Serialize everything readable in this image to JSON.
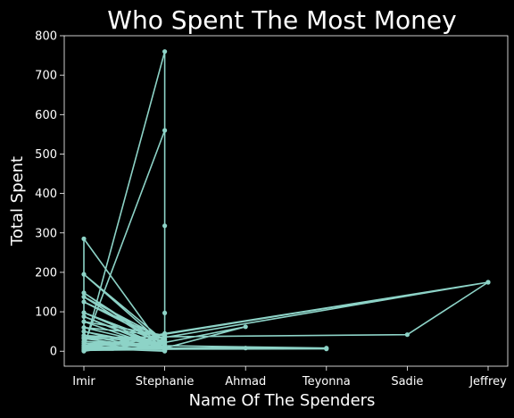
{
  "chart_data": {
    "type": "line",
    "title": "Who Spent The Most Money",
    "xlabel": "Name Of The Spenders",
    "ylabel": "Total Spent",
    "categories": [
      "Imir",
      "Stephanie",
      "Ahmad",
      "Teyonna",
      "Sadie",
      "Jeffrey"
    ],
    "yticks": [
      0,
      100,
      200,
      300,
      400,
      500,
      600,
      700,
      800
    ],
    "ylim": [
      -38,
      800
    ],
    "grid": false,
    "colors": {
      "background": "#000000",
      "line": "#8dd3c7",
      "text": "#ffffff"
    },
    "points": [
      [
        "Imir",
        5
      ],
      [
        "Stephanie",
        760
      ],
      [
        "Stephanie",
        2
      ],
      [
        "Imir",
        285
      ],
      [
        "Imir",
        0
      ],
      [
        "Stephanie",
        25
      ],
      [
        "Imir",
        195
      ],
      [
        "Stephanie",
        15
      ],
      [
        "Imir",
        148
      ],
      [
        "Stephanie",
        8
      ],
      [
        "Imir",
        138
      ],
      [
        "Stephanie",
        30
      ],
      [
        "Imir",
        125
      ],
      [
        "Stephanie",
        20
      ],
      [
        "Imir",
        98
      ],
      [
        "Stephanie",
        10
      ],
      [
        "Imir",
        88
      ],
      [
        "Stephanie",
        5
      ],
      [
        "Imir",
        75
      ],
      [
        "Stephanie",
        40
      ],
      [
        "Imir",
        60
      ],
      [
        "Stephanie",
        12
      ],
      [
        "Imir",
        50
      ],
      [
        "Stephanie",
        3
      ],
      [
        "Imir",
        40
      ],
      [
        "Stephanie",
        28
      ],
      [
        "Imir",
        32
      ],
      [
        "Stephanie",
        6
      ],
      [
        "Imir",
        25
      ],
      [
        "Stephanie",
        18
      ],
      [
        "Imir",
        15
      ],
      [
        "Stephanie",
        560
      ],
      [
        "Stephanie",
        318
      ],
      [
        "Stephanie",
        97
      ],
      [
        "Stephanie",
        0
      ],
      [
        "Imir",
        8
      ],
      [
        "Stephanie",
        35
      ],
      [
        "Jeffrey",
        175
      ],
      [
        "Sadie",
        42
      ],
      [
        "Imir",
        35
      ],
      [
        "Stephanie",
        22
      ],
      [
        "Ahmad",
        62
      ],
      [
        "Stephanie",
        8
      ],
      [
        "Ahmad",
        8
      ],
      [
        "Imir",
        3
      ],
      [
        "Teyonna",
        8
      ],
      [
        "Stephanie",
        14
      ],
      [
        "Teyonna",
        6
      ],
      [
        "Imir",
        5
      ],
      [
        "Stephanie",
        45
      ],
      [
        "Jeffrey",
        175
      ],
      [
        "Imir",
        10
      ],
      [
        "Stephanie",
        4
      ],
      [
        "Imir",
        2
      ],
      [
        "Stephanie",
        12
      ],
      [
        "Imir",
        20
      ],
      [
        "Stephanie",
        1
      ],
      [
        "Imir",
        12
      ],
      [
        "Stephanie",
        6
      ]
    ]
  }
}
